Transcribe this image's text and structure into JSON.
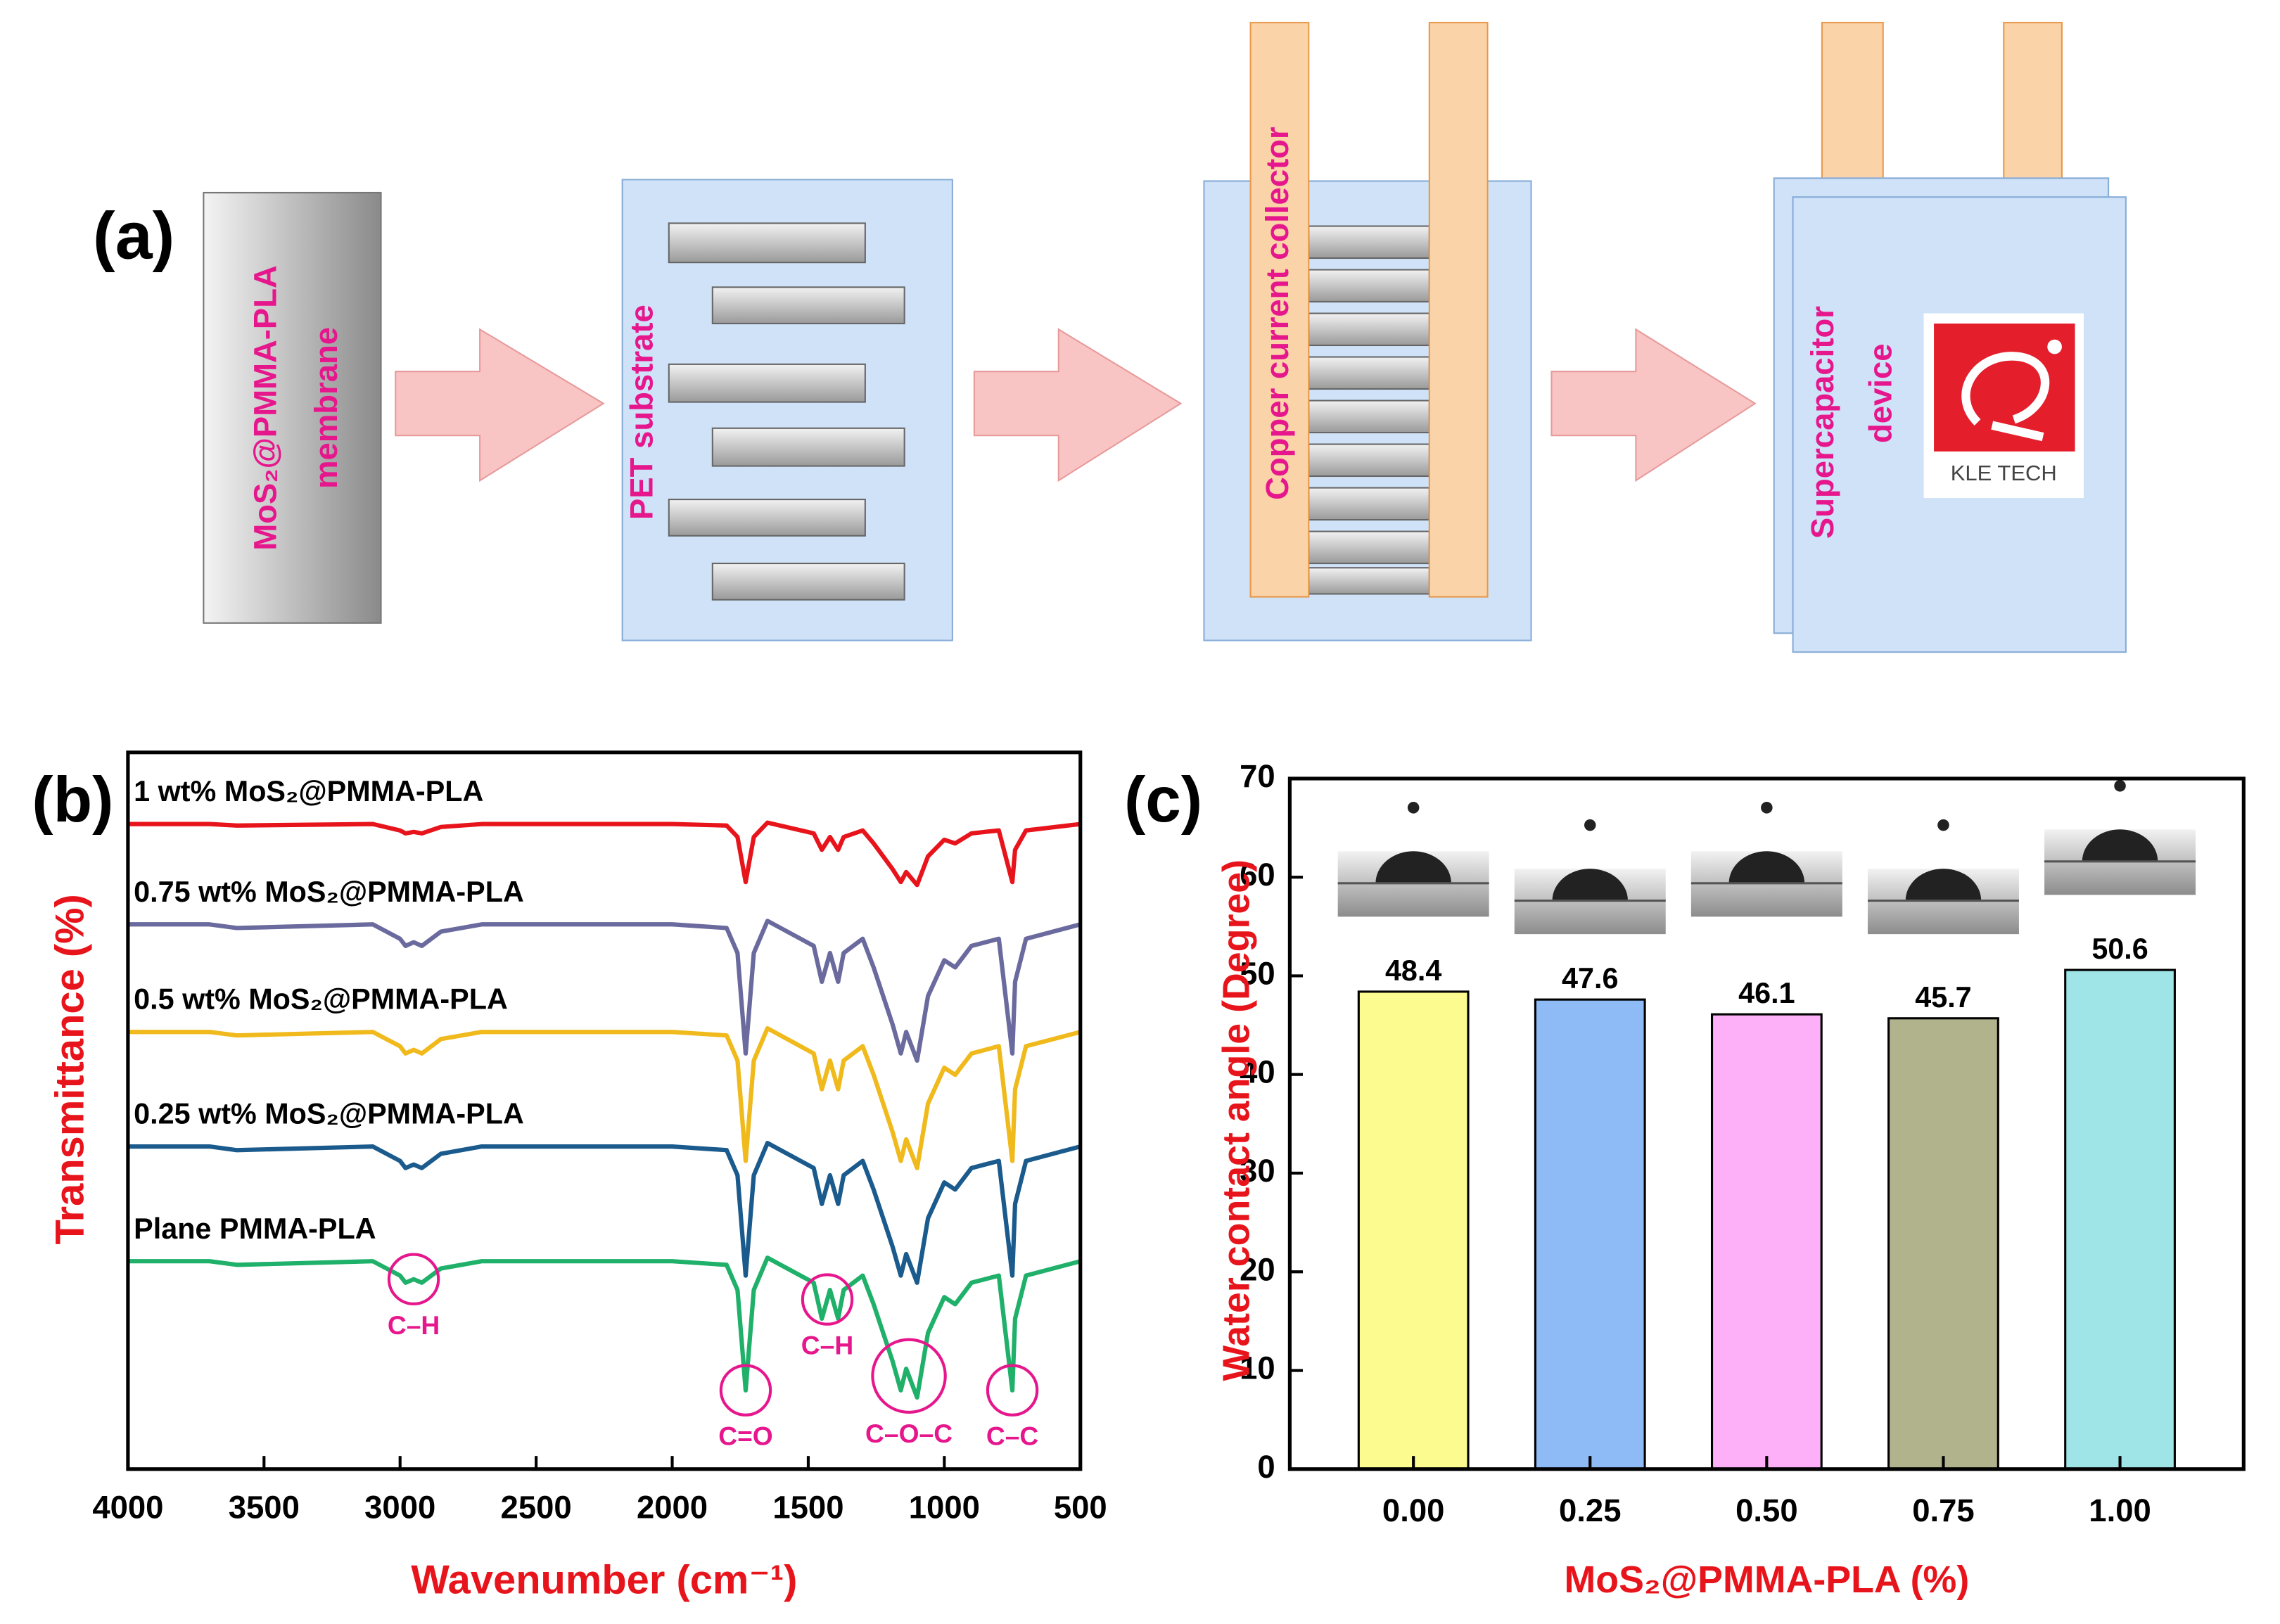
{
  "diagram": {
    "panel_label": "(a)",
    "steps": [
      {
        "lines": [
          "MoS₂@PMMA-PLA",
          "membrane"
        ]
      },
      {
        "lines": [
          "PET substrate"
        ]
      },
      {
        "lines": [
          "Copper current collector"
        ]
      },
      {
        "lines": [
          "Supercapacitor",
          "device"
        ]
      }
    ],
    "logo_text": "KLE TECH"
  },
  "chart_data": [
    {
      "type": "line",
      "panel_label": "(b)",
      "x_label": "Wavenumber (cm⁻¹)",
      "y_label": "Transmittance (%)",
      "xlim": [
        4000,
        500
      ],
      "xticks": [
        4000,
        3500,
        3000,
        2500,
        2000,
        1500,
        1000,
        500
      ],
      "ylim": [
        0,
        100
      ],
      "x": [
        4000,
        3700,
        3600,
        3100,
        3000,
        2980,
        2950,
        2920,
        2850,
        2700,
        2000,
        1800,
        1760,
        1730,
        1700,
        1650,
        1480,
        1450,
        1420,
        1390,
        1370,
        1300,
        1260,
        1190,
        1160,
        1140,
        1100,
        1060,
        1000,
        960,
        900,
        800,
        750,
        740,
        700,
        500
      ],
      "series": [
        {
          "name": "1 wt% MoS₂@PMMA-PLA",
          "color": "#e8141c",
          "values": [
            90,
            90,
            89.8,
            90,
            89.1,
            88.7,
            88.9,
            88.7,
            89.6,
            90,
            90,
            89.8,
            88.2,
            81.9,
            88.2,
            90.2,
            88.7,
            86.4,
            88.2,
            86.4,
            88.2,
            89.1,
            87.3,
            83.7,
            81.9,
            83.3,
            81.5,
            85.5,
            87.8,
            87.3,
            88.7,
            89.1,
            81.9,
            86.4,
            89.1,
            90
          ]
        },
        {
          "name": "0.75 wt% MoS₂@PMMA-PLA",
          "color": "#6a6a9e",
          "values": [
            76,
            76,
            75.5,
            76,
            74,
            73,
            73.5,
            73,
            75,
            76,
            76,
            75.5,
            72,
            58,
            72,
            76.5,
            73,
            68,
            72,
            68,
            72,
            74,
            70,
            62,
            58,
            61,
            57,
            66,
            71,
            70,
            73,
            74,
            58,
            68,
            74,
            76
          ]
        },
        {
          "name": "0.5 wt% MoS₂@PMMA-PLA",
          "color": "#f0b91c",
          "values": [
            61,
            61,
            60.5,
            61,
            59,
            58,
            58.5,
            58,
            60,
            61,
            61,
            60.5,
            57,
            43,
            57,
            61.5,
            58,
            53,
            57,
            53,
            57,
            59,
            55,
            47,
            43,
            46,
            42,
            51,
            56,
            55,
            58,
            59,
            43,
            53,
            59,
            61
          ]
        },
        {
          "name": "0.25 wt% MoS₂@PMMA-PLA",
          "color": "#1a5a8c",
          "values": [
            45,
            45,
            44.5,
            45,
            43,
            42,
            42.5,
            42,
            44,
            45,
            45,
            44.5,
            41,
            27,
            41,
            45.5,
            42,
            37,
            41,
            37,
            41,
            43,
            39,
            31,
            27,
            30,
            26,
            35,
            40,
            39,
            42,
            43,
            27,
            37,
            43,
            45
          ]
        },
        {
          "name": "Plane PMMA-PLA",
          "color": "#1fb06a",
          "values": [
            29,
            29,
            28.5,
            29,
            27,
            26,
            26.5,
            26,
            28,
            29,
            29,
            28.5,
            25,
            11,
            25,
            29.5,
            26,
            21,
            25,
            21,
            25,
            27,
            23,
            15,
            11,
            14,
            10,
            19,
            24,
            23,
            26,
            27,
            11,
            21,
            27,
            29
          ]
        }
      ],
      "annotations": [
        {
          "text": "C–H",
          "x": 2950
        },
        {
          "text": "C=O",
          "x": 1730
        },
        {
          "text": "C–H",
          "x": 1430
        },
        {
          "text": "C–O–C",
          "x": 1130
        },
        {
          "text": "C–C",
          "x": 750
        }
      ]
    },
    {
      "type": "bar",
      "panel_label": "(c)",
      "x_label": "MoS₂@PMMA-PLA (%)",
      "y_label": "Water contact angle (Degree)",
      "categories": [
        "0.00",
        "0.25",
        "0.50",
        "0.75",
        "1.00"
      ],
      "values": [
        48.4,
        47.6,
        46.1,
        45.7,
        50.6
      ],
      "colors": [
        "#fbfb8f",
        "#8ebbf5",
        "#fdb0f8",
        "#b0b38c",
        "#9fe5e8"
      ],
      "ylim": [
        0,
        70
      ],
      "yticks": [
        0,
        10,
        20,
        30,
        40,
        50,
        60,
        70
      ]
    }
  ]
}
